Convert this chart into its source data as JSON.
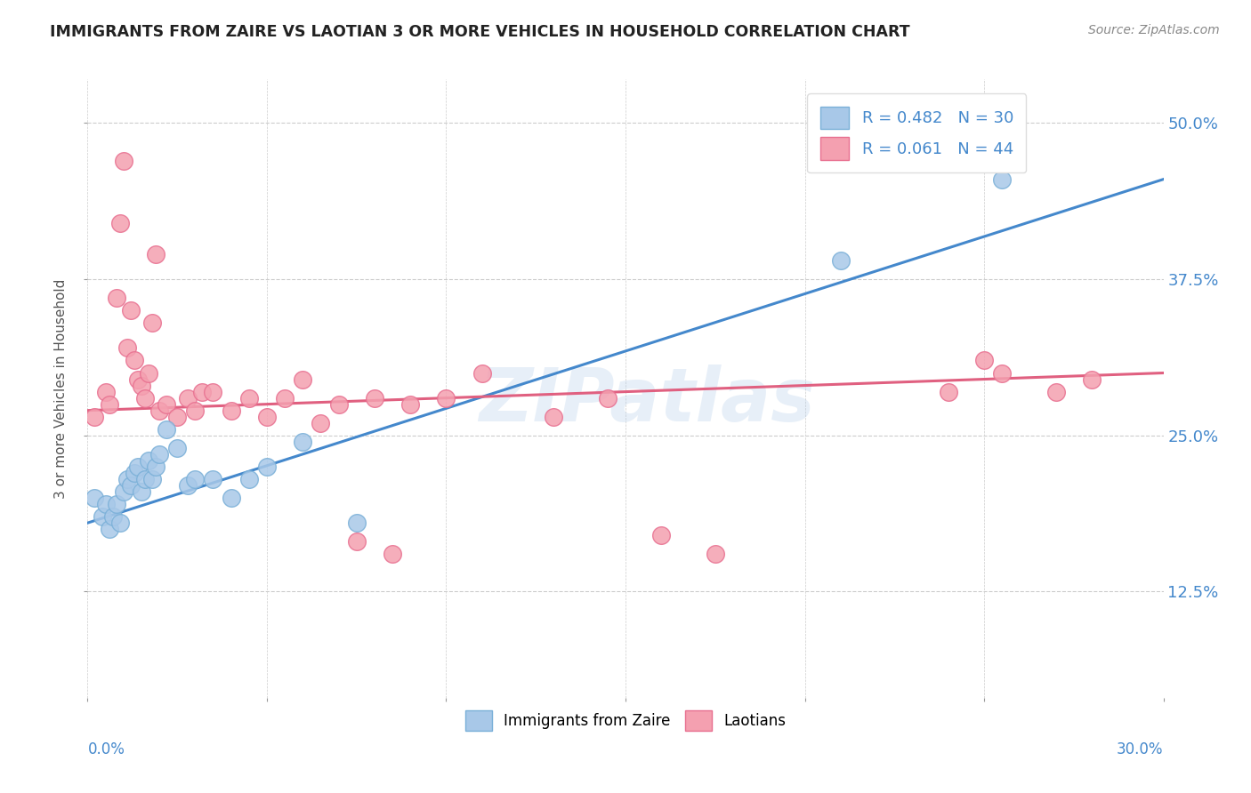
{
  "title": "IMMIGRANTS FROM ZAIRE VS LAOTIAN 3 OR MORE VEHICLES IN HOUSEHOLD CORRELATION CHART",
  "source": "Source: ZipAtlas.com",
  "ylabel": "3 or more Vehicles in Household",
  "yticks": [
    0.125,
    0.25,
    0.375,
    0.5
  ],
  "ytick_labels": [
    "12.5%",
    "25.0%",
    "37.5%",
    "50.0%"
  ],
  "xticks": [
    0.0,
    0.05,
    0.1,
    0.15,
    0.2,
    0.25,
    0.3
  ],
  "xmin": 0.0,
  "xmax": 0.3,
  "ymin": 0.04,
  "ymax": 0.535,
  "legend_r1": "R = 0.482",
  "legend_n1": "N = 30",
  "legend_r2": "R = 0.061",
  "legend_n2": "N = 44",
  "blue_color": "#a8c8e8",
  "pink_color": "#f4a0b0",
  "blue_edge": "#7ab0d8",
  "pink_edge": "#e87090",
  "line_blue": "#4488cc",
  "line_pink": "#e06080",
  "tick_color": "#4488cc",
  "watermark": "ZIPatlas",
  "blue_scatter_x": [
    0.002,
    0.004,
    0.005,
    0.006,
    0.007,
    0.008,
    0.009,
    0.01,
    0.011,
    0.012,
    0.013,
    0.014,
    0.015,
    0.016,
    0.017,
    0.018,
    0.019,
    0.02,
    0.022,
    0.025,
    0.028,
    0.03,
    0.035,
    0.04,
    0.045,
    0.05,
    0.06,
    0.075,
    0.21,
    0.255
  ],
  "blue_scatter_y": [
    0.2,
    0.185,
    0.195,
    0.175,
    0.185,
    0.195,
    0.18,
    0.205,
    0.215,
    0.21,
    0.22,
    0.225,
    0.205,
    0.215,
    0.23,
    0.215,
    0.225,
    0.235,
    0.255,
    0.24,
    0.21,
    0.215,
    0.215,
    0.2,
    0.215,
    0.225,
    0.245,
    0.18,
    0.39,
    0.455
  ],
  "pink_scatter_x": [
    0.002,
    0.005,
    0.006,
    0.008,
    0.009,
    0.01,
    0.011,
    0.012,
    0.013,
    0.014,
    0.015,
    0.016,
    0.017,
    0.018,
    0.019,
    0.02,
    0.022,
    0.025,
    0.028,
    0.03,
    0.032,
    0.035,
    0.04,
    0.045,
    0.05,
    0.055,
    0.06,
    0.065,
    0.07,
    0.075,
    0.08,
    0.085,
    0.09,
    0.1,
    0.11,
    0.13,
    0.145,
    0.16,
    0.175,
    0.24,
    0.25,
    0.255,
    0.27,
    0.28
  ],
  "pink_scatter_y": [
    0.265,
    0.285,
    0.275,
    0.36,
    0.42,
    0.47,
    0.32,
    0.35,
    0.31,
    0.295,
    0.29,
    0.28,
    0.3,
    0.34,
    0.395,
    0.27,
    0.275,
    0.265,
    0.28,
    0.27,
    0.285,
    0.285,
    0.27,
    0.28,
    0.265,
    0.28,
    0.295,
    0.26,
    0.275,
    0.165,
    0.28,
    0.155,
    0.275,
    0.28,
    0.3,
    0.265,
    0.28,
    0.17,
    0.155,
    0.285,
    0.31,
    0.3,
    0.285,
    0.295
  ],
  "blue_line_x": [
    0.0,
    0.3
  ],
  "blue_line_y": [
    0.18,
    0.455
  ],
  "pink_line_x": [
    0.0,
    0.3
  ],
  "pink_line_y": [
    0.27,
    0.3
  ]
}
